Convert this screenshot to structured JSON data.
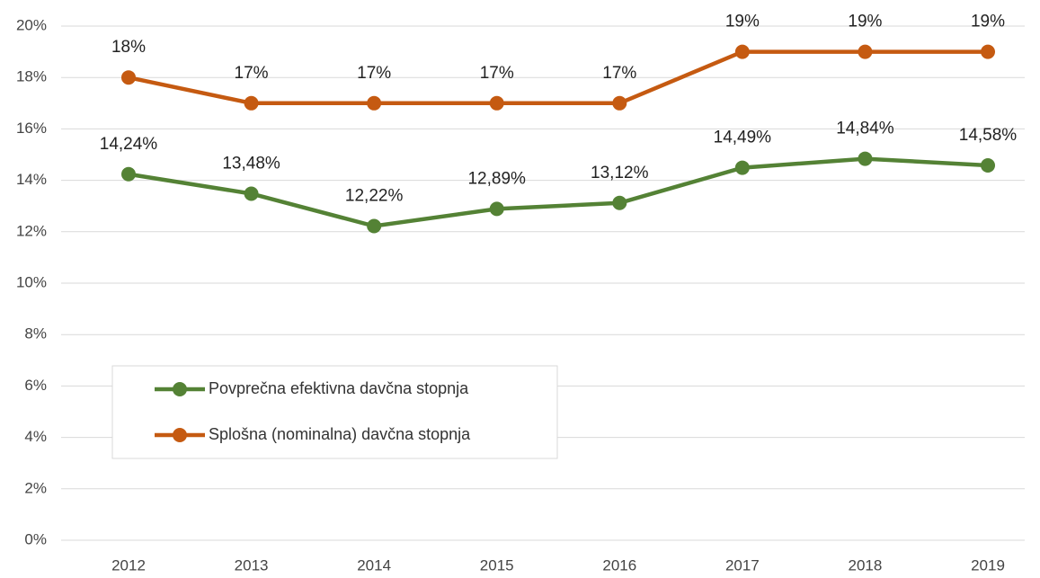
{
  "chart_data": {
    "type": "line",
    "categories": [
      "2012",
      "2013",
      "2014",
      "2015",
      "2016",
      "2017",
      "2018",
      "2019"
    ],
    "series": [
      {
        "name": "Povprečna efektivna davčna stopnja",
        "color": "#548235",
        "values": [
          14.24,
          13.48,
          12.22,
          12.89,
          13.12,
          14.49,
          14.84,
          14.58
        ],
        "value_labels": [
          "14,24%",
          "13,48%",
          "12,22%",
          "12,89%",
          "13,12%",
          "14,49%",
          "14,84%",
          "14,58%"
        ]
      },
      {
        "name": "Splošna (nominalna) davčna stopnja",
        "color": "#c55a11",
        "values": [
          18,
          17,
          17,
          17,
          17,
          19,
          19,
          19
        ],
        "value_labels": [
          "18%",
          "17%",
          "17%",
          "17%",
          "17%",
          "19%",
          "19%",
          "19%"
        ]
      }
    ],
    "ylim": [
      0,
      20
    ],
    "yticks": [
      {
        "value": 0,
        "label": "0%"
      },
      {
        "value": 2,
        "label": "2%"
      },
      {
        "value": 4,
        "label": "4%"
      },
      {
        "value": 6,
        "label": "6%"
      },
      {
        "value": 8,
        "label": "8%"
      },
      {
        "value": 10,
        "label": "10%"
      },
      {
        "value": 12,
        "label": "12%"
      },
      {
        "value": 14,
        "label": "14%"
      },
      {
        "value": 16,
        "label": "16%"
      },
      {
        "value": 18,
        "label": "18%"
      },
      {
        "value": 20,
        "label": "20%"
      }
    ],
    "grid": true
  }
}
